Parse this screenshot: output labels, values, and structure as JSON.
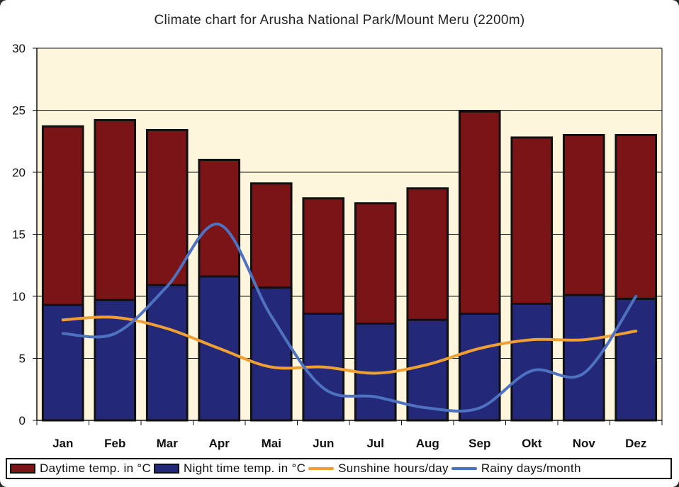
{
  "chart_data": {
    "type": "bar",
    "title": "Climate chart for Arusha National Park/Mount Meru (2200m)",
    "xlabel": "",
    "ylabel": "",
    "categories": [
      "Jan",
      "Feb",
      "Mar",
      "Apr",
      "Mai",
      "Jun",
      "Jul",
      "Aug",
      "Sep",
      "Okt",
      "Nov",
      "Dez"
    ],
    "ylim": [
      0,
      30
    ],
    "yticks": [
      "0",
      "5",
      "10",
      "15",
      "20",
      "25",
      "30"
    ],
    "grid": true,
    "legend_position": "bottom",
    "series": [
      {
        "name": "Daytime temp. in °C",
        "kind": "bar",
        "color": "#7a1416",
        "values": [
          23.7,
          24.2,
          23.4,
          21.0,
          19.1,
          17.9,
          17.5,
          18.7,
          24.9,
          22.8,
          23.0,
          23.0
        ]
      },
      {
        "name": "Night time temp. in °C",
        "kind": "bar",
        "color": "#232878",
        "values": [
          9.3,
          9.7,
          10.9,
          11.6,
          10.7,
          8.6,
          7.8,
          8.1,
          8.6,
          9.4,
          10.1,
          9.8
        ]
      },
      {
        "name": "Sunshine hours/day",
        "kind": "line",
        "color": "#f0a033",
        "values": [
          8.1,
          8.3,
          7.4,
          5.8,
          4.3,
          4.3,
          3.8,
          4.5,
          5.8,
          6.5,
          6.5,
          7.2
        ]
      },
      {
        "name": "Rainy days/month",
        "kind": "line",
        "color": "#4f72c0",
        "values": [
          7.0,
          7.0,
          10.8,
          15.8,
          8.4,
          2.6,
          1.9,
          1.0,
          1.0,
          4.0,
          3.8,
          10.0
        ]
      }
    ]
  },
  "colors": {
    "plot_background": "#fdf6dc",
    "bar_outline": "#111111"
  }
}
